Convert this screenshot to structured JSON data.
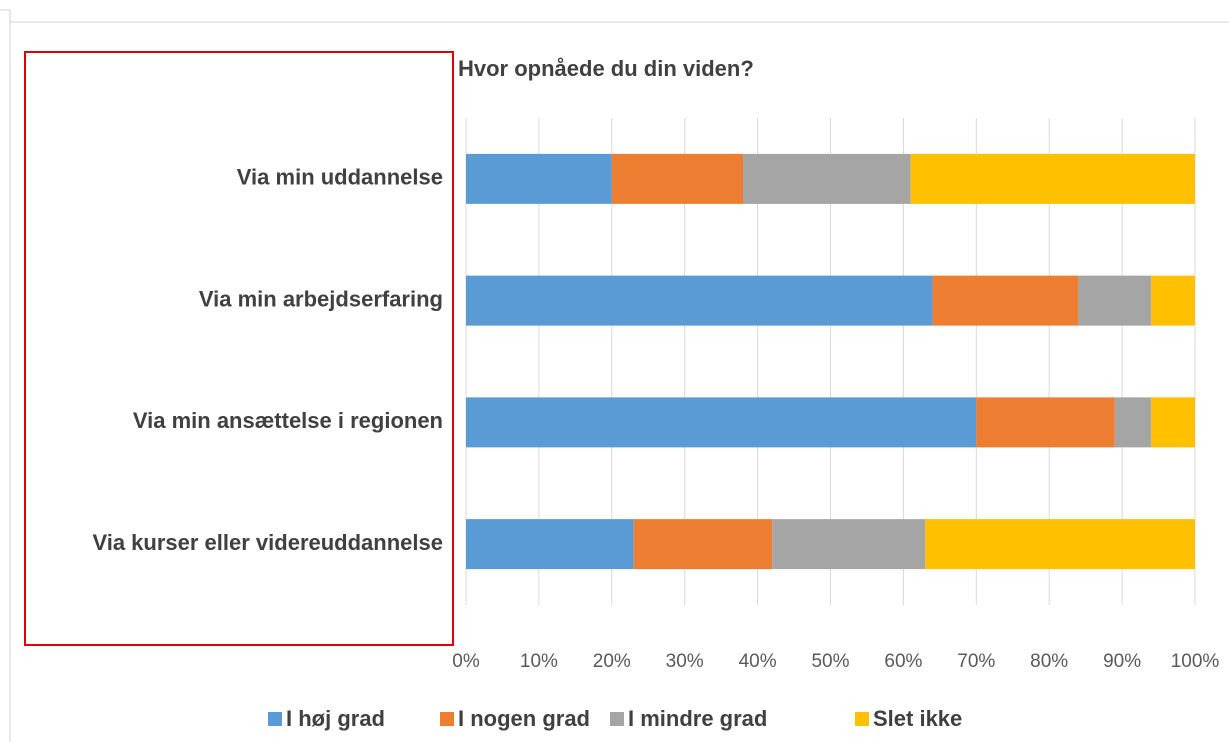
{
  "chart_data": {
    "type": "stacked_bar_horizontal",
    "title": "Hvor opnåede du din viden?",
    "categories": [
      "Via min uddannelse",
      "Via min arbejdserfaring",
      "Via min ansættelse i regionen",
      "Via kurser eller videreuddannelse"
    ],
    "series": [
      {
        "name": "I høj grad",
        "color": "#5b9bd5",
        "values": [
          20,
          64,
          70,
          23
        ]
      },
      {
        "name": "I nogen grad",
        "color": "#ed7d31",
        "values": [
          18,
          20,
          19,
          19
        ]
      },
      {
        "name": "I mindre grad",
        "color": "#a5a5a5",
        "values": [
          23,
          10,
          5,
          21
        ]
      },
      {
        "name": "Slet ikke",
        "color": "#ffc000",
        "values": [
          39,
          6,
          6,
          37
        ]
      }
    ],
    "xlim": [
      0,
      100
    ],
    "xticks": [
      {
        "value": 0,
        "label": "0%"
      },
      {
        "value": 10,
        "label": "10%"
      },
      {
        "value": 20,
        "label": "20%"
      },
      {
        "value": 30,
        "label": "30%"
      },
      {
        "value": 40,
        "label": "40%"
      },
      {
        "value": 50,
        "label": "50%"
      },
      {
        "value": 60,
        "label": "60%"
      },
      {
        "value": 70,
        "label": "70%"
      },
      {
        "value": 80,
        "label": "80%"
      },
      {
        "value": 90,
        "label": "90%"
      },
      {
        "value": 100,
        "label": "100%"
      }
    ],
    "grid": true,
    "legend": "bottom"
  }
}
